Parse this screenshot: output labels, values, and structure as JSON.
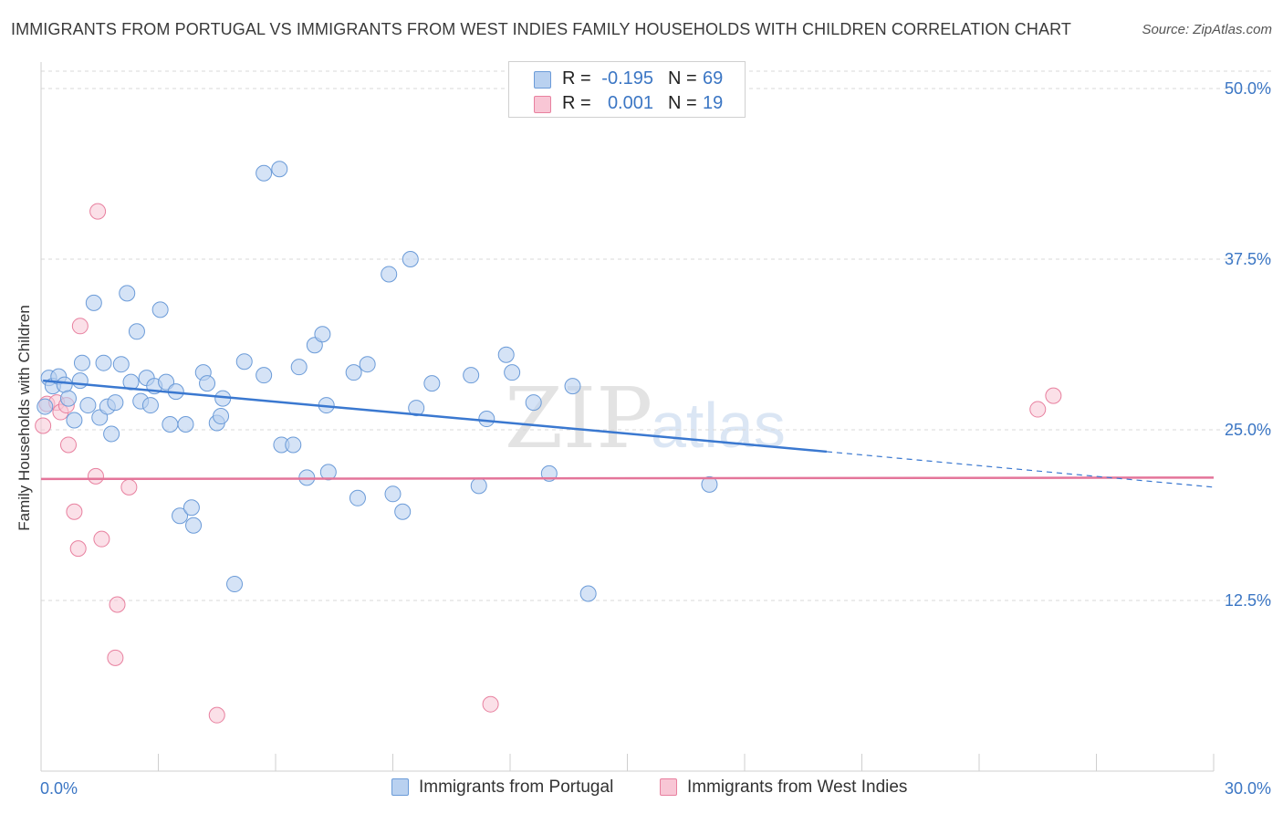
{
  "title": "IMMIGRANTS FROM PORTUGAL VS IMMIGRANTS FROM WEST INDIES FAMILY HOUSEHOLDS WITH CHILDREN CORRELATION CHART",
  "source": "Source: ZipAtlas.com",
  "legend": {
    "portugal": {
      "r_label": "R =",
      "r_value": "-0.195",
      "n_label": "N =",
      "n_value": "69"
    },
    "west_indies": {
      "r_label": "R =",
      "r_value": "0.001",
      "n_label": "N =",
      "n_value": "19"
    }
  },
  "colors": {
    "portugal_fill": "#b9d1f0",
    "portugal_stroke": "#6b9bd8",
    "portugal_line": "#3a78d0",
    "west_indies_fill": "#f8c6d5",
    "west_indies_stroke": "#e8809f",
    "west_indies_line": "#e4759a",
    "tick_label": "#3b76c4",
    "grid": "#d8d8d8"
  },
  "chart_data": {
    "type": "scatter",
    "title": "IMMIGRANTS FROM PORTUGAL VS IMMIGRANTS FROM WEST INDIES FAMILY HOUSEHOLDS WITH CHILDREN CORRELATION CHART",
    "xlabel": "",
    "ylabel": "Family Households with Children",
    "xlim": [
      0,
      30
    ],
    "ylim": [
      0,
      50
    ],
    "x_tick_labels": [
      "0.0%",
      "30.0%"
    ],
    "y_ticks": [
      12.5,
      25.0,
      37.5,
      50.0
    ],
    "y_tick_labels": [
      "12.5%",
      "25.0%",
      "37.5%",
      "50.0%"
    ],
    "grid": true,
    "legend_position": "top-center",
    "series": [
      {
        "name": "Immigrants from Portugal",
        "trend": {
          "x_start": 0.05,
          "y_start": 28.6,
          "x_solid_end": 20.1,
          "y_solid_end": 23.4,
          "x_end": 30.0,
          "y_end": 20.8
        },
        "points": [
          [
            0.1,
            26.7
          ],
          [
            0.2,
            28.8
          ],
          [
            0.3,
            28.2
          ],
          [
            0.45,
            28.9
          ],
          [
            0.6,
            28.3
          ],
          [
            0.7,
            27.3
          ],
          [
            0.85,
            25.7
          ],
          [
            1.0,
            28.6
          ],
          [
            1.05,
            29.9
          ],
          [
            1.2,
            26.8
          ],
          [
            1.35,
            34.3
          ],
          [
            1.5,
            25.9
          ],
          [
            1.6,
            29.9
          ],
          [
            1.7,
            26.7
          ],
          [
            1.8,
            24.7
          ],
          [
            1.9,
            27.0
          ],
          [
            2.05,
            29.8
          ],
          [
            2.2,
            35.0
          ],
          [
            2.3,
            28.5
          ],
          [
            2.45,
            32.2
          ],
          [
            2.55,
            27.1
          ],
          [
            2.7,
            28.8
          ],
          [
            2.8,
            26.8
          ],
          [
            2.9,
            28.2
          ],
          [
            3.05,
            33.8
          ],
          [
            3.2,
            28.5
          ],
          [
            3.3,
            25.4
          ],
          [
            3.45,
            27.8
          ],
          [
            3.55,
            18.7
          ],
          [
            3.7,
            25.4
          ],
          [
            3.85,
            19.3
          ],
          [
            3.9,
            18.0
          ],
          [
            4.15,
            29.2
          ],
          [
            4.25,
            28.4
          ],
          [
            4.5,
            25.5
          ],
          [
            4.6,
            26.0
          ],
          [
            4.65,
            27.3
          ],
          [
            4.95,
            13.7
          ],
          [
            5.2,
            30.0
          ],
          [
            5.7,
            29.0
          ],
          [
            5.7,
            43.8
          ],
          [
            6.1,
            44.1
          ],
          [
            6.15,
            23.9
          ],
          [
            6.45,
            23.9
          ],
          [
            6.6,
            29.6
          ],
          [
            6.8,
            21.5
          ],
          [
            7.0,
            31.2
          ],
          [
            7.2,
            32.0
          ],
          [
            7.3,
            26.8
          ],
          [
            7.35,
            21.9
          ],
          [
            8.0,
            29.2
          ],
          [
            8.1,
            20.0
          ],
          [
            8.35,
            29.8
          ],
          [
            8.9,
            36.4
          ],
          [
            9.0,
            20.3
          ],
          [
            9.25,
            19.0
          ],
          [
            9.45,
            37.5
          ],
          [
            9.6,
            26.6
          ],
          [
            10.0,
            28.4
          ],
          [
            11.0,
            29.0
          ],
          [
            11.2,
            20.9
          ],
          [
            11.4,
            25.8
          ],
          [
            11.9,
            30.5
          ],
          [
            12.05,
            29.2
          ],
          [
            12.6,
            27.0
          ],
          [
            13.0,
            21.8
          ],
          [
            13.6,
            28.2
          ],
          [
            14.0,
            13.0
          ],
          [
            17.1,
            21.0
          ]
        ]
      },
      {
        "name": "Immigrants from West Indies",
        "trend": {
          "x_start": 0.0,
          "y_start": 21.4,
          "x_end": 30.0,
          "y_end": 21.5
        },
        "points": [
          [
            0.05,
            25.3
          ],
          [
            0.15,
            26.9
          ],
          [
            0.4,
            27.0
          ],
          [
            0.5,
            26.3
          ],
          [
            0.65,
            26.8
          ],
          [
            0.7,
            23.9
          ],
          [
            0.85,
            19.0
          ],
          [
            0.95,
            16.3
          ],
          [
            1.0,
            32.6
          ],
          [
            1.4,
            21.6
          ],
          [
            1.45,
            41.0
          ],
          [
            1.55,
            17.0
          ],
          [
            1.9,
            8.3
          ],
          [
            1.95,
            12.2
          ],
          [
            2.25,
            20.8
          ],
          [
            4.5,
            4.1
          ],
          [
            11.5,
            4.9
          ],
          [
            25.5,
            26.5
          ],
          [
            25.9,
            27.5
          ]
        ]
      }
    ]
  },
  "bottom_legend": {
    "portugal_label": "Immigrants from Portugal",
    "west_indies_label": "Immigrants from West Indies"
  },
  "watermark": {
    "zip": "ZIP",
    "atlas": "atlas"
  }
}
